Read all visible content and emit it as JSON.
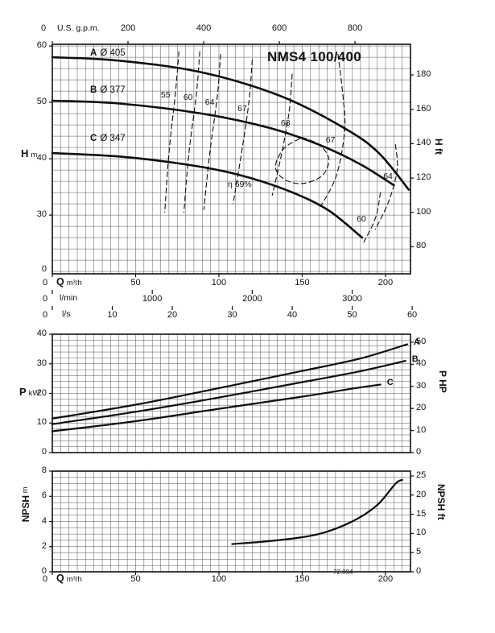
{
  "title": "NMS4 100/400",
  "code": "72.094",
  "chart_data": [
    {
      "id": "head-flow",
      "type": "line",
      "x": {
        "label": "Q",
        "unit": "m³/h",
        "range": [
          0,
          215
        ],
        "grid_step": 5,
        "ticks": [
          0,
          50,
          100,
          150,
          200
        ]
      },
      "x_top": {
        "label": "U.S. g.p.m.",
        "ticks": [
          0,
          200,
          400,
          600,
          800
        ],
        "factor": 0.22712
      },
      "x_scales": [
        {
          "label": "l/min",
          "ticks": [
            0,
            1000,
            2000,
            3000
          ],
          "factor": 0.06
        },
        {
          "label": "l/s",
          "ticks": [
            0,
            10,
            20,
            30,
            40,
            50,
            60
          ],
          "factor": 3.6
        }
      ],
      "y": {
        "label": "H",
        "unit": "m",
        "ticks": [
          60,
          50,
          40,
          30
        ],
        "origin": "0",
        "grid_from": 20,
        "grid_to": 60,
        "grid_step": 2
      },
      "y_right": {
        "label": "H ft",
        "ticks": [
          180,
          160,
          140,
          120,
          100,
          80
        ],
        "factor": 0.3048
      },
      "series": [
        {
          "name": "A",
          "impeller": "Ø 405",
          "points": [
            [
              0,
              58
            ],
            [
              40,
              57.4
            ],
            [
              90,
              55.3
            ],
            [
              138,
              51
            ],
            [
              176,
              45.3
            ],
            [
              196,
              41
            ],
            [
              214,
              34.5
            ]
          ]
        },
        {
          "name": "B",
          "impeller": "Ø 377",
          "points": [
            [
              0,
              50.3
            ],
            [
              40,
              49.8
            ],
            [
              90,
              48
            ],
            [
              130,
              45.5
            ],
            [
              160,
              42.5
            ],
            [
              185,
              39
            ],
            [
              205,
              35.3
            ]
          ]
        },
        {
          "name": "C",
          "impeller": "Ø 347",
          "points": [
            [
              0,
              41
            ],
            [
              40,
              40.4
            ],
            [
              80,
              39
            ],
            [
              110,
              37.3
            ],
            [
              140,
              34.5
            ],
            [
              165,
              31
            ],
            [
              186,
              26
            ]
          ]
        }
      ],
      "efficiency": [
        {
          "label": "55",
          "label_at": [
            68,
            52
          ],
          "points": [
            [
              76,
              59
            ],
            [
              74,
              52
            ],
            [
              70,
              41
            ],
            [
              67.5,
              30.5
            ]
          ]
        },
        {
          "label": "60",
          "label_at": [
            81.5,
            51.6
          ],
          "points": [
            [
              88.5,
              59
            ],
            [
              86.5,
              51.5
            ],
            [
              82,
              41
            ],
            [
              79,
              30.5
            ]
          ]
        },
        {
          "label": "64",
          "label_at": [
            94.5,
            50.8
          ],
          "points": [
            [
              101,
              58.5
            ],
            [
              99,
              51
            ],
            [
              94.5,
              41
            ],
            [
              91,
              31
            ]
          ]
        },
        {
          "label": "67",
          "label_at": [
            114,
            49.6
          ],
          "points": [
            [
              120,
              57.5
            ],
            [
              118,
              50
            ],
            [
              113,
              40
            ],
            [
              108.5,
              32
            ]
          ]
        },
        {
          "label": "68",
          "label_at": [
            140,
            47
          ],
          "points": [
            [
              144,
              55
            ],
            [
              142,
              48
            ],
            [
              137,
              40
            ],
            [
              132,
              33.5
            ]
          ]
        },
        {
          "label": "67",
          "label_at": [
            167,
            44
          ],
          "points": [
            [
              171.5,
              58.5
            ],
            [
              174.5,
              51
            ],
            [
              175.5,
              45
            ],
            [
              170.5,
              37
            ],
            [
              161,
              31.5
            ]
          ]
        },
        {
          "label": "64",
          "label_at": [
            201.5,
            37.6
          ],
          "points": [
            [
              206,
              42.5
            ],
            [
              207,
              38
            ],
            [
              202,
              32.5
            ],
            [
              194,
              27.5
            ]
          ]
        },
        {
          "label": "60",
          "label_at": [
            185.5,
            30
          ],
          "points": [
            [
              197,
              34
            ],
            [
              194,
              29.5
            ],
            [
              187,
              25.2
            ]
          ]
        },
        {
          "label": "η 69%",
          "label_at": [
            112.5,
            36.2
          ],
          "closed": true,
          "points": [
            [
              150,
              43.8
            ],
            [
              160,
              42.5
            ],
            [
              166,
              40
            ],
            [
              162,
              37
            ],
            [
              150,
              35.6
            ],
            [
              139,
              36.4
            ],
            [
              134,
              38.6
            ],
            [
              139,
              41.8
            ],
            [
              150,
              43.8
            ]
          ]
        }
      ]
    },
    {
      "id": "power-flow",
      "type": "line",
      "y": {
        "label": "P",
        "unit": "kW",
        "ticks": [
          40,
          30,
          20,
          10,
          0
        ],
        "range": [
          0,
          40
        ],
        "grid_step": 2
      },
      "y_right": {
        "label": "P HP",
        "ticks": [
          50,
          40,
          30,
          20,
          10,
          0
        ],
        "factor": 0.7457
      },
      "series": [
        {
          "name": "A",
          "points": [
            [
              0,
              11.5
            ],
            [
              50,
              16.2
            ],
            [
              100,
              21.8
            ],
            [
              150,
              27.6
            ],
            [
              185,
              31.8
            ],
            [
              213,
              36.6
            ]
          ]
        },
        {
          "name": "B",
          "points": [
            [
              0,
              9.6
            ],
            [
              50,
              13.8
            ],
            [
              100,
              18.6
            ],
            [
              150,
              23.8
            ],
            [
              185,
              27.5
            ],
            [
              212,
              31
            ]
          ]
        },
        {
          "name": "C",
          "points": [
            [
              0,
              7.2
            ],
            [
              50,
              10.6
            ],
            [
              100,
              14.8
            ],
            [
              150,
              18.9
            ],
            [
              180,
              21.6
            ],
            [
              197,
              23
            ]
          ]
        }
      ]
    },
    {
      "id": "npsh-flow",
      "type": "line",
      "x": {
        "label": "Q",
        "unit": "m³/h",
        "ticks": [
          0,
          50,
          100,
          150,
          200
        ]
      },
      "y": {
        "label": "NPSH",
        "unit": "m",
        "ticks": [
          8,
          6,
          4,
          2,
          0
        ],
        "range": [
          0,
          8
        ],
        "grid_step": 0.5
      },
      "y_right": {
        "label": "NPSH ft",
        "ticks": [
          25,
          20,
          15,
          10,
          5,
          0
        ],
        "factor": 0.3048
      },
      "series": [
        {
          "name": "NPSH",
          "points": [
            [
              108,
              2.2
            ],
            [
              135,
              2.5
            ],
            [
              160,
              3
            ],
            [
              180,
              4
            ],
            [
              195,
              5.3
            ],
            [
              206,
              7
            ],
            [
              210,
              7.3
            ]
          ]
        }
      ]
    }
  ]
}
